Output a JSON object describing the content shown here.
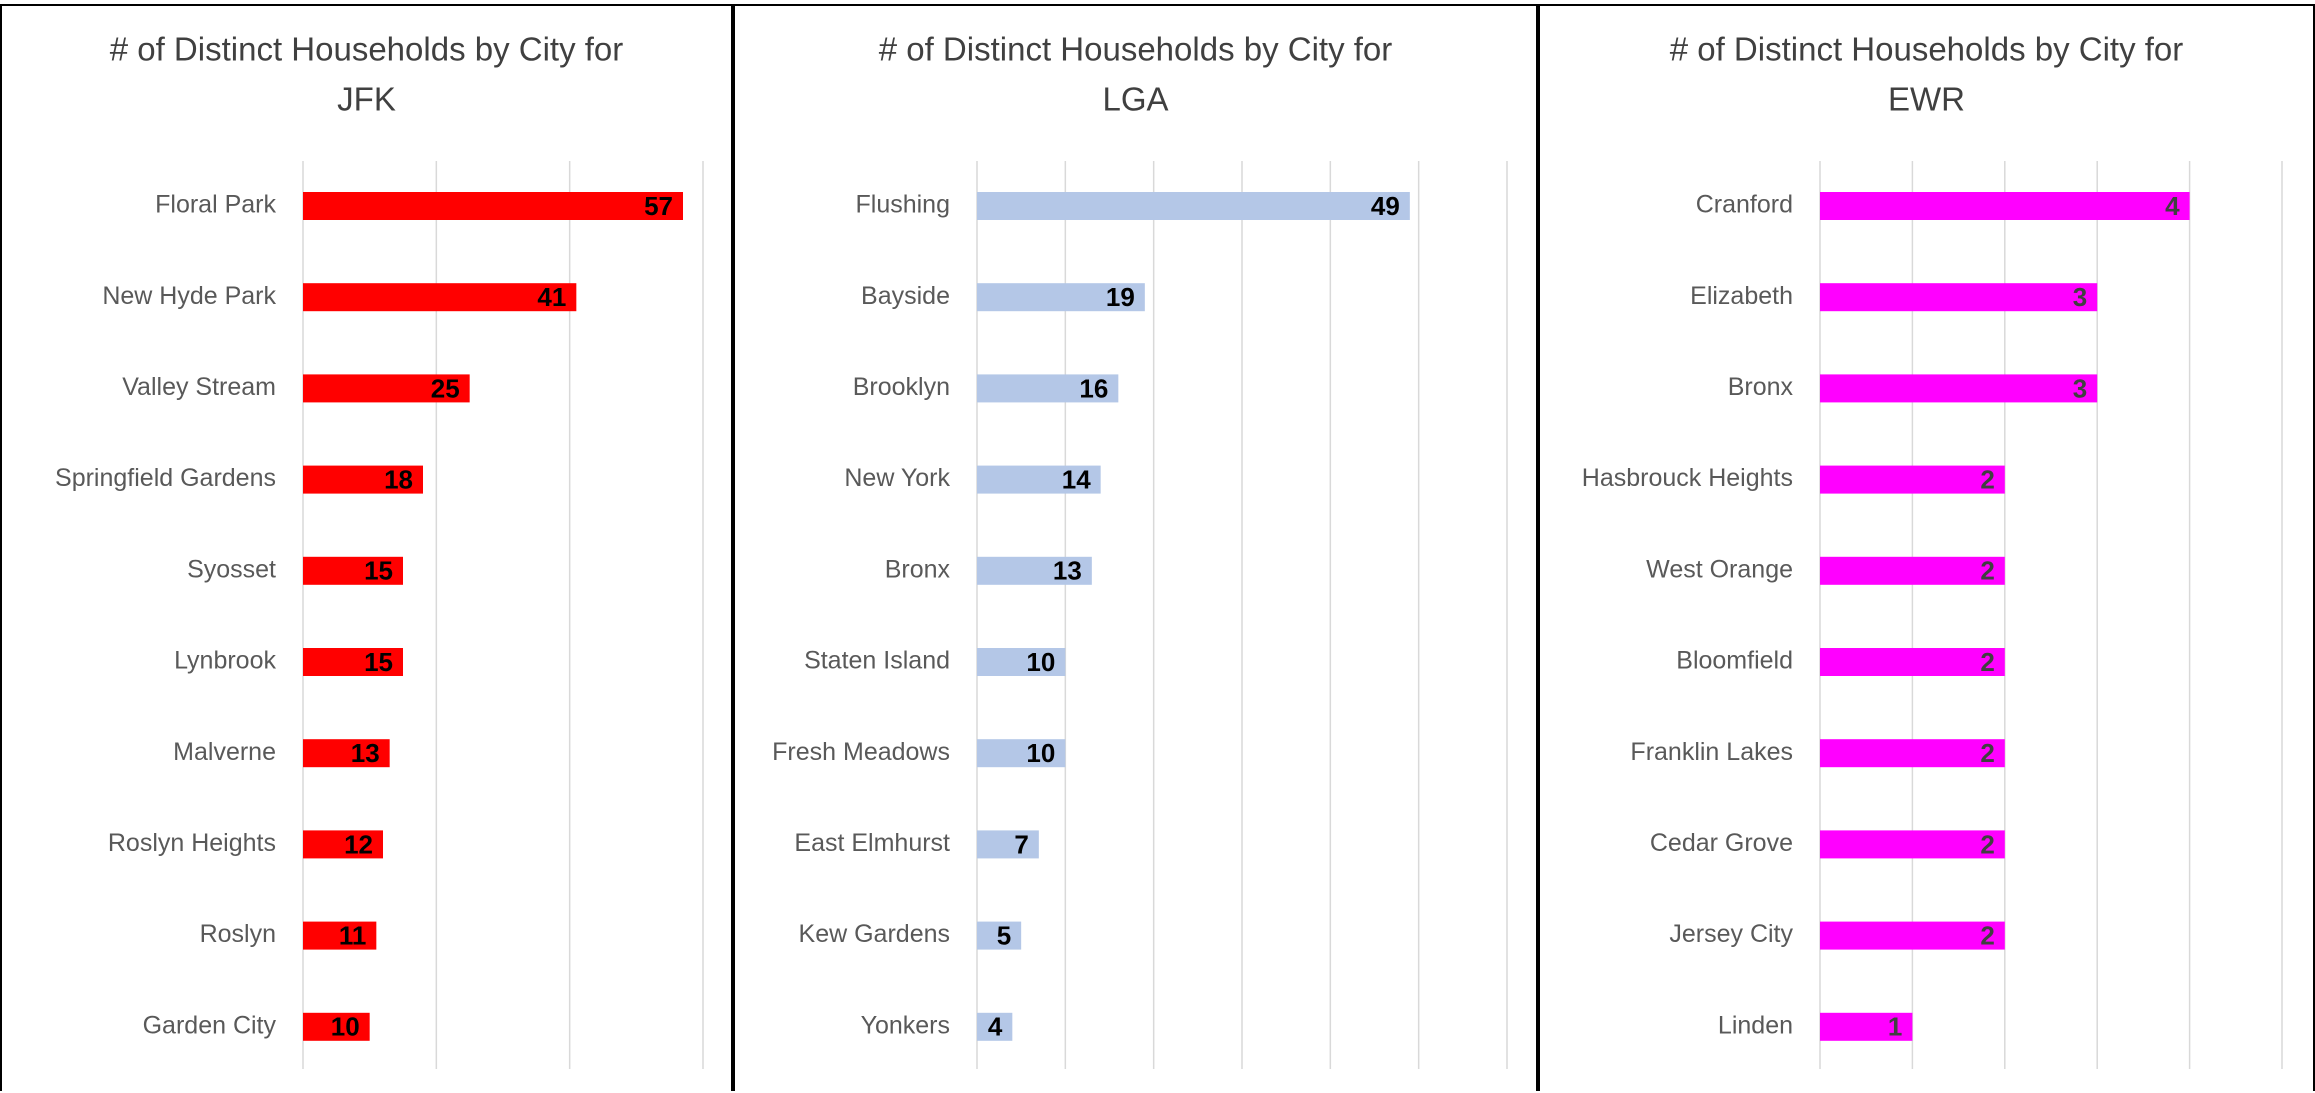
{
  "chart_data": [
    {
      "type": "barh",
      "title": [
        "# of Distinct Households by City for",
        "JFK"
      ],
      "color": "#ff0000",
      "label_color": "#000000",
      "categories": [
        "Floral Park",
        "New Hyde Park",
        "Valley Stream",
        "Springfield Gardens",
        "Syosset",
        "Lynbrook",
        "Malverne",
        "Roslyn Heights",
        "Roslyn",
        "Garden City"
      ],
      "values": [
        57,
        41,
        25,
        18,
        15,
        15,
        13,
        12,
        11,
        10
      ],
      "xlim": [
        0,
        60
      ],
      "xticks": [
        0,
        20,
        40,
        60
      ],
      "grid": true
    },
    {
      "type": "barh",
      "title": [
        "# of Distinct Households by City for",
        "LGA"
      ],
      "color": "#b4c7e7",
      "label_color": "#000000",
      "categories": [
        "Flushing",
        "Bayside",
        "Brooklyn",
        "New York",
        "Bronx",
        "Staten Island",
        "Fresh Meadows",
        "East Elmhurst",
        "Kew Gardens",
        "Yonkers"
      ],
      "values": [
        49,
        19,
        16,
        14,
        13,
        10,
        10,
        7,
        5,
        4
      ],
      "xlim": [
        0,
        60
      ],
      "xticks": [
        0,
        10,
        20,
        30,
        40,
        50,
        60
      ],
      "grid": true
    },
    {
      "type": "barh",
      "title": [
        "# of Distinct Households by City for",
        "EWR"
      ],
      "color": "#ff00ff",
      "label_color": "#404040",
      "categories": [
        "Cranford",
        "Elizabeth",
        "Bronx",
        "Hasbrouck Heights",
        "West Orange",
        "Bloomfield",
        "Franklin Lakes",
        "Cedar Grove",
        "Jersey City",
        "Linden"
      ],
      "values": [
        4,
        3,
        3,
        2,
        2,
        2,
        2,
        2,
        2,
        1
      ],
      "xlim": [
        0,
        5
      ],
      "xticks": [
        0,
        1,
        2,
        3,
        4,
        5
      ],
      "grid": true
    }
  ]
}
